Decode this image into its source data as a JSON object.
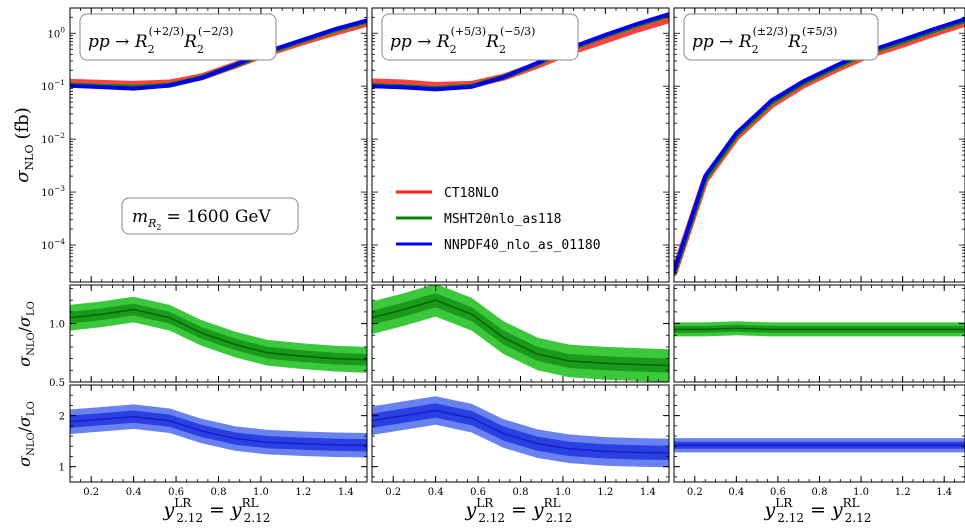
{
  "chart_data": {
    "type": "line",
    "x": [
      0.1,
      0.25,
      0.4,
      0.57,
      0.72,
      0.88,
      1.03,
      1.2,
      1.35,
      1.5
    ],
    "xlim": [
      0.1,
      1.5
    ],
    "xticks": [
      "0.2",
      "0.4",
      "0.6",
      "0.8",
      "1.0",
      "1.2",
      "1.4"
    ],
    "xlabel_main": "y",
    "xlabel_sub": "2.12",
    "xlabel_sup_left": "LR",
    "xlabel_sup_right": "RL",
    "xlabel_eq": "=",
    "top_row": {
      "ylabel_main": "σ",
      "ylabel_sub": "NLO",
      "ylabel_unit": "(fb)",
      "yscale": "log",
      "ylim": [
        2e-05,
        3
      ],
      "ytick_base": "10",
      "ytick_exps": [
        "0",
        "−1",
        "−2",
        "−3",
        "−4"
      ],
      "mass_label": "m",
      "mass_sub": "R",
      "mass_subsub": "2",
      "mass_value": "= 1600 GeV"
    },
    "middle_row": {
      "ylabel_num": "σ",
      "ylabel_num_sub": "NLO",
      "ylabel_slash": "/",
      "ylabel_den": "σ",
      "ylabel_den_sub": "LO",
      "ylim": [
        0.5,
        1.33
      ],
      "yticks": [
        "0.5",
        "1.0"
      ]
    },
    "bottom_row": {
      "ylabel_num": "σ",
      "ylabel_num_sub": "NLO",
      "ylabel_slash": "/",
      "ylabel_den": "σ",
      "ylabel_den_sub": "LO",
      "ylim": [
        0.7,
        2.6
      ],
      "yticks": [
        "1",
        "2"
      ]
    },
    "legend": {
      "placement": "center-right of left panel",
      "entries": [
        {
          "label": "CT18NLO",
          "color": "#ff2020"
        },
        {
          "label": "MSHT20nlo_as118",
          "color": "#008800"
        },
        {
          "label": "NNPDF40_nlo_as_01180",
          "color": "#0000ee"
        }
      ]
    },
    "panels": [
      {
        "process_prefix": "pp → R",
        "sub1": "2",
        "sup1": "(+2/3)",
        "mid": "R",
        "sub2": "2",
        "sup2": "(−2/3)",
        "series": [
          {
            "name": "CT18NLO",
            "values": [
              0.118,
              0.113,
              0.108,
              0.115,
              0.15,
              0.25,
              0.42,
              0.7,
              1.05,
              1.55
            ]
          },
          {
            "name": "MSHT20nlo_as118",
            "values": [
              0.105,
              0.1,
              0.095,
              0.105,
              0.145,
              0.25,
              0.43,
              0.74,
              1.15,
              1.7
            ]
          },
          {
            "name": "NNPDF40_nlo_as_01180",
            "values": [
              0.102,
              0.096,
              0.09,
              0.103,
              0.143,
              0.255,
              0.45,
              0.76,
              1.2,
              1.75
            ]
          }
        ],
        "ratio_green": {
          "center": [
            1.05,
            1.08,
            1.12,
            1.05,
            0.92,
            0.82,
            0.75,
            0.72,
            0.7,
            0.69
          ],
          "inner": 0.05,
          "outer": 0.11
        },
        "ratio_blue": {
          "center": [
            1.88,
            1.93,
            1.98,
            1.9,
            1.7,
            1.55,
            1.48,
            1.45,
            1.43,
            1.42
          ],
          "inner": 0.12,
          "outer": 0.24
        }
      },
      {
        "process_prefix": "pp → R",
        "sub1": "2",
        "sup1": "(+5/3)",
        "mid": "R",
        "sub2": "2",
        "sup2": "(−5/3)",
        "series": [
          {
            "name": "CT18NLO",
            "values": [
              0.12,
              0.115,
              0.103,
              0.108,
              0.148,
              0.25,
              0.44,
              0.75,
              1.2,
              1.8
            ]
          },
          {
            "name": "MSHT20nlo_as118",
            "values": [
              0.103,
              0.098,
              0.09,
              0.1,
              0.148,
              0.27,
              0.5,
              0.9,
              1.45,
              2.2
            ]
          },
          {
            "name": "NNPDF40_nlo_as_01180",
            "values": [
              0.1,
              0.095,
              0.087,
              0.098,
              0.148,
              0.275,
              0.52,
              0.93,
              1.5,
              2.3
            ]
          }
        ],
        "ratio_green": {
          "center": [
            1.05,
            1.12,
            1.2,
            1.08,
            0.88,
            0.74,
            0.68,
            0.66,
            0.65,
            0.64
          ],
          "inner": 0.06,
          "outer": 0.14
        },
        "ratio_blue": {
          "center": [
            1.9,
            2.0,
            2.1,
            1.95,
            1.65,
            1.45,
            1.35,
            1.3,
            1.28,
            1.27
          ],
          "inner": 0.14,
          "outer": 0.28
        }
      },
      {
        "process_prefix": "pp → R",
        "sub1": "2",
        "sup1": "(±2/3)",
        "mid": "R",
        "sub2": "2",
        "sup2": "(∓5/3)",
        "series": [
          {
            "name": "CT18NLO",
            "values": [
              3e-05,
              0.0017,
              0.011,
              0.045,
              0.105,
              0.21,
              0.38,
              0.62,
              1.0,
              1.55
            ]
          },
          {
            "name": "MSHT20nlo_as118",
            "values": [
              3e-05,
              0.0018,
              0.012,
              0.05,
              0.115,
              0.23,
              0.42,
              0.7,
              1.12,
              1.75
            ]
          },
          {
            "name": "NNPDF40_nlo_as_01180",
            "values": [
              3.2e-05,
              0.002,
              0.013,
              0.054,
              0.122,
              0.245,
              0.45,
              0.75,
              1.2,
              1.85
            ]
          }
        ],
        "ratio_green": {
          "center": [
            0.95,
            0.95,
            0.96,
            0.95,
            0.95,
            0.95,
            0.95,
            0.95,
            0.95,
            0.95
          ],
          "inner": 0.03,
          "outer": 0.06
        },
        "ratio_blue": {
          "center": [
            1.42,
            1.42,
            1.42,
            1.42,
            1.42,
            1.42,
            1.42,
            1.42,
            1.42,
            1.42
          ],
          "inner": 0.07,
          "outer": 0.14
        }
      }
    ],
    "colors": {
      "red": "#ff2020",
      "green_line": "#006400",
      "green_inner": "#1a9a1a",
      "green_outer": "#3cc83c",
      "blue_line": "#1a1ad0",
      "blue_inner": "#2a40e0",
      "blue_outer": "#6a82f0"
    }
  }
}
